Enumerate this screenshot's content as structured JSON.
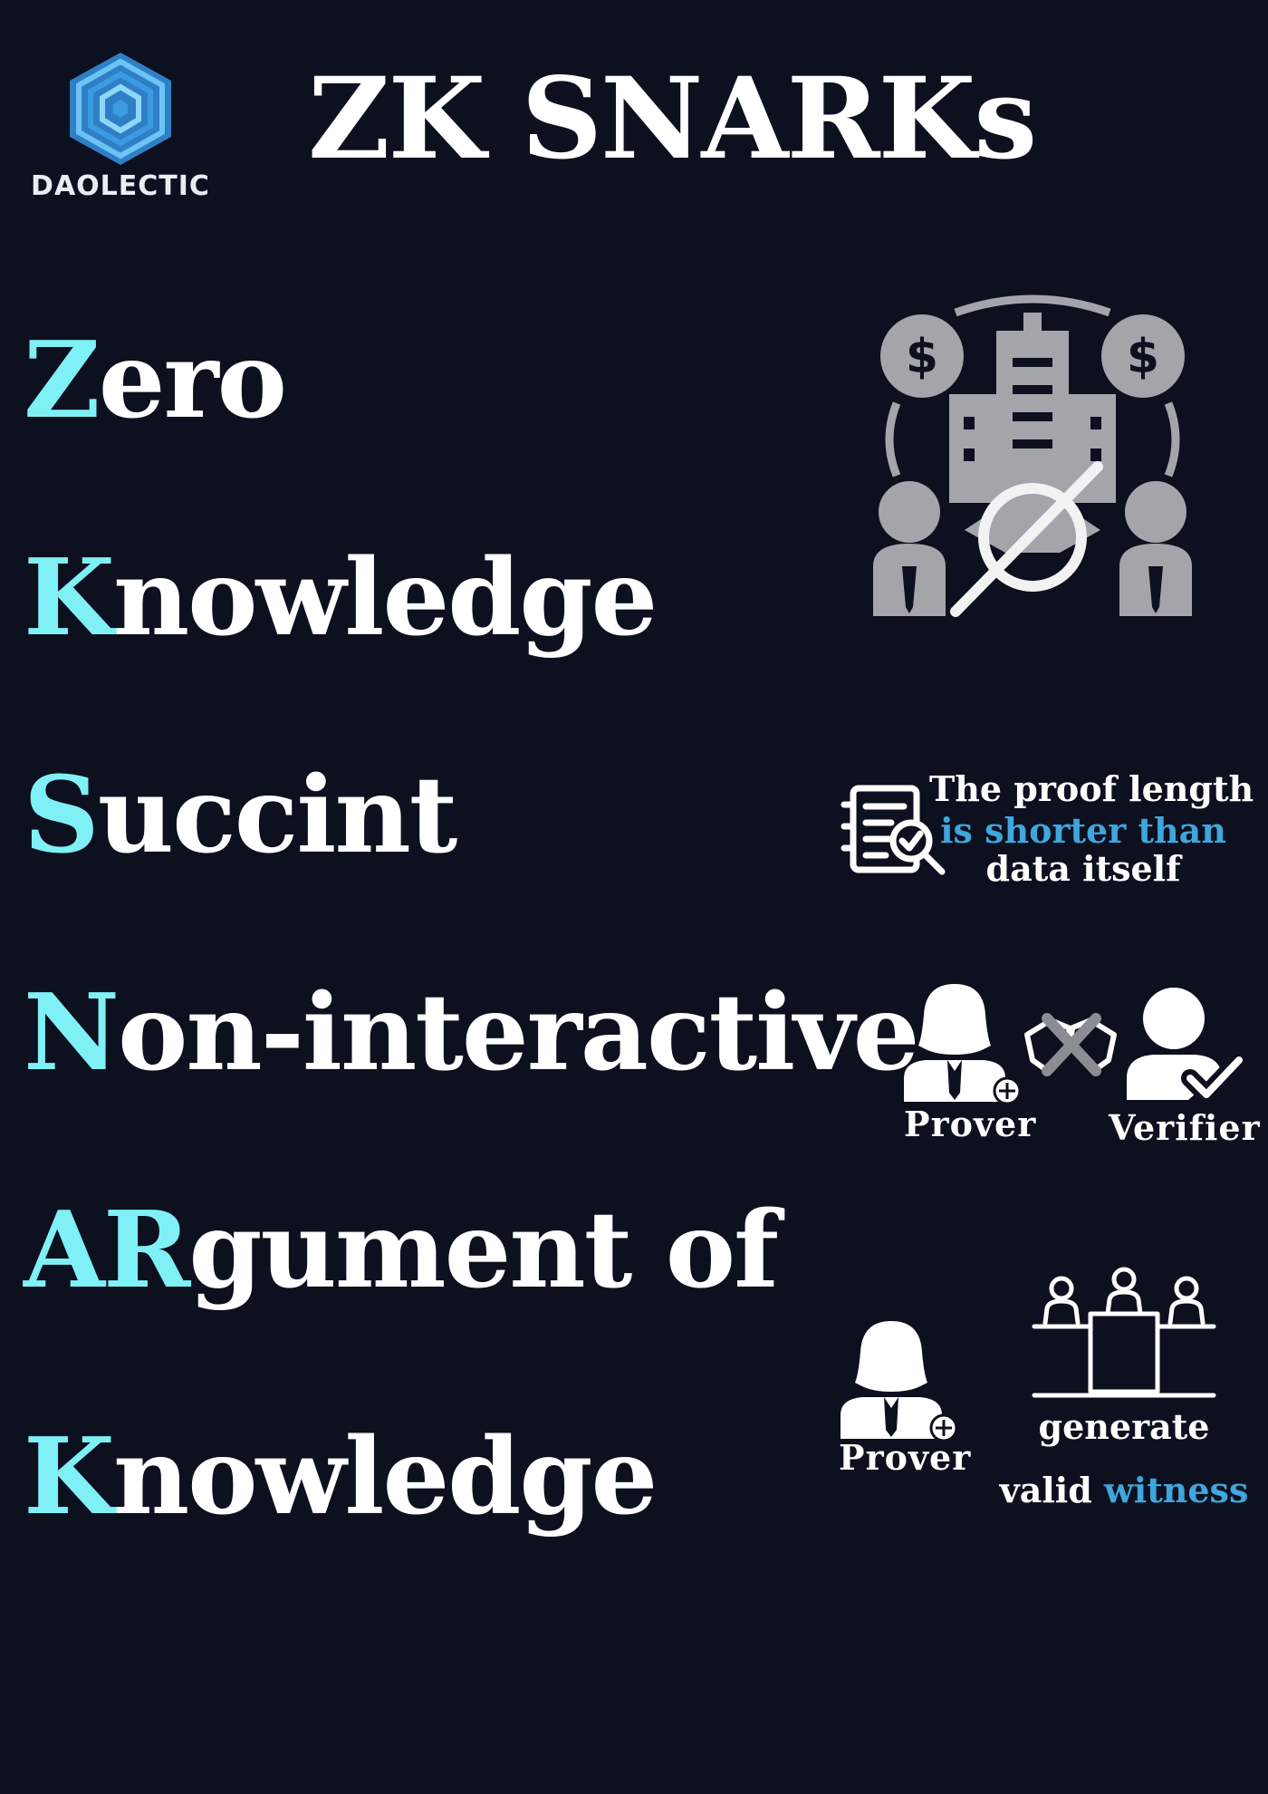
{
  "brand": {
    "name": "DAOLECTIC"
  },
  "title": "ZK SNARKs",
  "terms": [
    {
      "highlight": "Z",
      "rest": "ero"
    },
    {
      "highlight": "K",
      "rest": "nowledge"
    },
    {
      "highlight": "S",
      "rest": "uccint"
    },
    {
      "highlight": "N",
      "rest": "on-interactive"
    },
    {
      "highlight": "AR",
      "rest": "gument of"
    },
    {
      "highlight": "K",
      "rest": "nowledge"
    }
  ],
  "succinct_note": {
    "line1": "The proof length",
    "line2": "is shorter than",
    "line3": "data itself"
  },
  "non_interactive": {
    "prover_label": "Prover",
    "verifier_label": "Verifier"
  },
  "argument": {
    "prover_label": "Prover",
    "line1": "generate",
    "line2_plain": "valid",
    "line2_accent": "witness"
  },
  "colors": {
    "background": "#0d101e",
    "highlight": "#7ff1f6",
    "accent": "#3fa6de",
    "icon_gray": "#a3a5ab"
  },
  "icons": {
    "logo": "hexagon-logo-icon",
    "zero": "zero-knowledge-exchange-icon",
    "succinct": "document-search-icon",
    "prover": "prover-person-icon",
    "verifier": "verifier-check-icon",
    "no_interaction": "no-handshake-icon",
    "committee": "committee-table-icon"
  }
}
